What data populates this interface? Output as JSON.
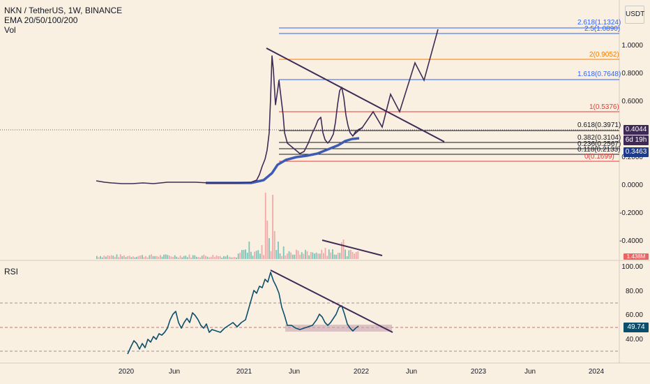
{
  "header": {
    "symbol_line": "NKN / TetherUS, 1W, BINANCE",
    "ema_line": "EMA 20/50/100/200",
    "vol_line": "Vol"
  },
  "scale_button": "USDT",
  "fib_levels": [
    {
      "label": "2.618(1.1324)",
      "color": "#2962ff"
    },
    {
      "label": "2.5(1.0890)",
      "color": "#2962ff"
    },
    {
      "label": "2(0.9052)",
      "color": "#f57c00"
    },
    {
      "label": "1.618(0.7648)",
      "color": "#2962ff"
    },
    {
      "label": "1(0.5376)",
      "color": "#e53935"
    },
    {
      "label": "0.618(0.3971)",
      "color": "#131722"
    },
    {
      "label": "0.382(0.3104)",
      "color": "#131722"
    },
    {
      "label": "0.236(0.2567)",
      "color": "#131722"
    },
    {
      "label": "0.118(0.2133)",
      "color": "#131722"
    },
    {
      "label": "0(0.1699)",
      "color": "#e53935"
    }
  ],
  "price_axis": [
    "1.0000",
    "0.8000",
    "0.6000",
    "0.2000",
    "0.0000",
    "-0.2000",
    "-0.4000"
  ],
  "price_tags": {
    "last_price": "0.4044",
    "countdown": "6d 19h",
    "ema_value": "0.3463",
    "volume_value": "1.438M"
  },
  "rsi": {
    "title": "RSI",
    "axis": [
      "100.00",
      "80.00",
      "60.00",
      "40.00"
    ],
    "value": "49.74"
  },
  "time_axis": [
    "2020",
    "Jun",
    "2021",
    "Jun",
    "2022",
    "Jun",
    "2023",
    "Jun",
    "2024"
  ],
  "colors": {
    "background": "#faf0e2",
    "price_line": "#3f2a56",
    "ema_line": "#3d5bb5",
    "volume_up": "#7cc4b8",
    "volume_down": "#f0a8a8",
    "rsi_line": "#0b4f6c",
    "trendline": "#3f2a56"
  }
}
